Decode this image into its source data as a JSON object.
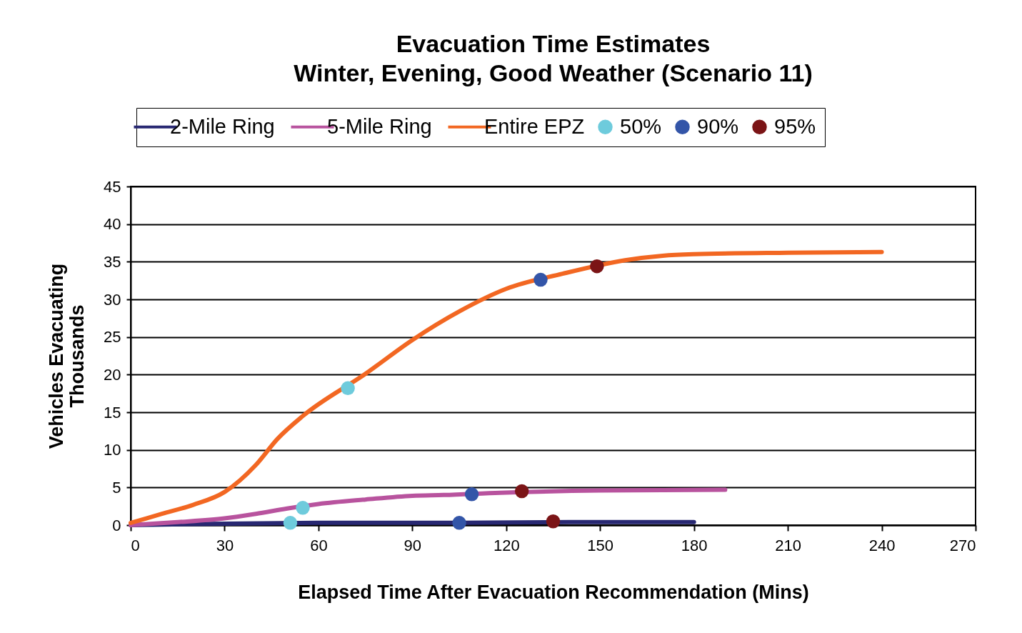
{
  "chart_data": {
    "type": "line",
    "title": "Evacuation Time Estimates\nWinter, Evening, Good Weather (Scenario 11)",
    "xlabel": "Elapsed Time After Evacuation  Recommendation  (Mins)",
    "ylabel": "Vehicles Evacuating\nThousands",
    "xlim": [
      0,
      270
    ],
    "xticks": [
      0,
      30,
      60,
      90,
      120,
      150,
      180,
      210,
      240,
      270
    ],
    "ylim": [
      0,
      45
    ],
    "yticks": [
      0,
      5,
      10,
      15,
      20,
      25,
      30,
      35,
      40,
      45
    ],
    "grid": "y",
    "legend": "top",
    "line_style": "solid",
    "series": [
      {
        "name": "2-Mile Ring",
        "color": "#282872",
        "x": [
          0,
          30,
          60,
          105,
          140,
          180
        ],
        "values": [
          0,
          0.2,
          0.3,
          0.3,
          0.4,
          0.4
        ]
      },
      {
        "name": "5-Mile Ring",
        "color": "#b8539e",
        "x": [
          0,
          15,
          30,
          40,
          50,
          60,
          75,
          90,
          100,
          118,
          150,
          190
        ],
        "values": [
          0,
          0.4,
          0.9,
          1.5,
          2.2,
          2.8,
          3.4,
          3.9,
          4.0,
          4.3,
          4.6,
          4.7
        ]
      },
      {
        "name": "Entire EPZ",
        "color": "#f26722",
        "x": [
          0,
          10,
          20,
          30,
          40,
          47,
          55,
          75,
          90,
          105,
          120,
          138,
          158,
          170,
          180,
          210,
          240
        ],
        "values": [
          0.3,
          1.5,
          2.7,
          4.4,
          8,
          11.5,
          14.5,
          20.1,
          24.6,
          28.4,
          31.4,
          33.4,
          35.2,
          35.8,
          36,
          36.2,
          36.3
        ]
      },
      {
        "name": "50%",
        "color": "#6ecbdc",
        "type": "scatter",
        "marker": "circle",
        "x": [
          51,
          55,
          69.4
        ],
        "values": [
          0.3,
          2.3,
          18.2
        ]
      },
      {
        "name": "90%",
        "color": "#3355a8",
        "type": "scatter",
        "marker": "circle",
        "x": [
          105,
          109,
          131
        ],
        "values": [
          0.3,
          4.1,
          32.6
        ]
      },
      {
        "name": "95%",
        "color": "#7b1416",
        "type": "scatter",
        "marker": "circle",
        "x": [
          135,
          125,
          149
        ],
        "values": [
          0.5,
          4.5,
          34.4
        ]
      }
    ]
  }
}
